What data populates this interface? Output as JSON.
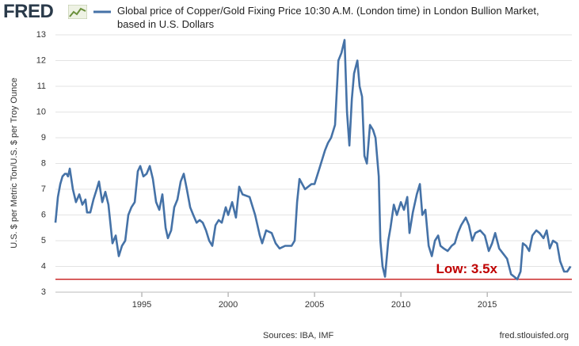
{
  "logo": "FRED",
  "chart_data": {
    "type": "line",
    "title": "Global price of Copper/Gold Fixing Price 10:30 A.M. (London time) in London Bullion Market, based in U.S. Dollars",
    "y_label": "U.S. $ per Metric Ton/U.S. $ per Troy Ounce",
    "source": "Sources: IBA, IMF",
    "credit": "fred.stlouisfed.org",
    "x": [
      1990.0,
      1990.14,
      1990.28,
      1990.41,
      1990.55,
      1990.64,
      1990.73,
      1990.83,
      1991.01,
      1991.19,
      1991.38,
      1991.56,
      1991.74,
      1991.83,
      1992.02,
      1992.2,
      1992.39,
      1992.52,
      1992.71,
      1992.89,
      1993.07,
      1993.3,
      1993.49,
      1993.67,
      1993.85,
      1994.04,
      1994.22,
      1994.4,
      1994.59,
      1994.77,
      1994.91,
      1995.09,
      1995.28,
      1995.46,
      1995.64,
      1995.83,
      1996.01,
      1996.19,
      1996.38,
      1996.51,
      1996.7,
      1996.88,
      1997.06,
      1997.25,
      1997.43,
      1997.61,
      1997.8,
      1997.98,
      1998.17,
      1998.35,
      1998.53,
      1998.72,
      1998.9,
      1999.08,
      1999.27,
      1999.45,
      1999.63,
      1999.86,
      2000.0,
      2000.23,
      2000.45,
      2000.64,
      2000.83,
      2001.24,
      2001.56,
      2001.83,
      2001.97,
      2002.2,
      2002.52,
      2002.75,
      2002.98,
      2003.3,
      2003.67,
      2003.85,
      2003.99,
      2004.13,
      2004.45,
      2004.82,
      2005.0,
      2005.28,
      2005.6,
      2005.78,
      2005.96,
      2006.19,
      2006.38,
      2006.56,
      2006.74,
      2006.88,
      2007.02,
      2007.16,
      2007.29,
      2007.48,
      2007.61,
      2007.75,
      2007.89,
      2008.03,
      2008.21,
      2008.39,
      2008.53,
      2008.72,
      2008.81,
      2008.94,
      2009.08,
      2009.27,
      2009.4,
      2009.59,
      2009.77,
      2010.0,
      2010.18,
      2010.37,
      2010.5,
      2010.69,
      2010.92,
      2011.1,
      2011.24,
      2011.42,
      2011.61,
      2011.79,
      2011.97,
      2012.16,
      2012.29,
      2012.48,
      2012.71,
      2012.94,
      2013.12,
      2013.3,
      2013.49,
      2013.76,
      2013.94,
      2014.13,
      2014.31,
      2014.59,
      2014.86,
      2015.09,
      2015.28,
      2015.46,
      2015.69,
      2015.92,
      2016.15,
      2016.38,
      2016.56,
      2016.74,
      2016.93,
      2017.06,
      2017.25,
      2017.43,
      2017.61,
      2017.84,
      2018.03,
      2018.26,
      2018.44,
      2018.62,
      2018.81,
      2019.04,
      2019.22,
      2019.45,
      2019.63,
      2019.82
    ],
    "series": [
      {
        "color": "#4572a7",
        "values": [
          5.7,
          6.7,
          7.2,
          7.5,
          7.6,
          7.6,
          7.5,
          7.8,
          7.0,
          6.5,
          6.8,
          6.4,
          6.6,
          6.1,
          6.1,
          6.6,
          7.0,
          7.3,
          6.5,
          6.9,
          6.4,
          4.9,
          5.2,
          4.4,
          4.8,
          5.0,
          6.0,
          6.3,
          6.5,
          7.7,
          7.9,
          7.5,
          7.6,
          7.9,
          7.4,
          6.5,
          6.2,
          6.8,
          5.5,
          5.1,
          5.4,
          6.3,
          6.6,
          7.3,
          7.6,
          7.0,
          6.3,
          6.0,
          5.7,
          5.8,
          5.7,
          5.4,
          5.0,
          4.8,
          5.6,
          5.8,
          5.7,
          6.3,
          6.0,
          6.5,
          5.9,
          7.1,
          6.8,
          6.7,
          6.0,
          5.2,
          4.9,
          5.4,
          5.3,
          4.9,
          4.7,
          4.8,
          4.8,
          5.0,
          6.5,
          7.4,
          7.0,
          7.2,
          7.2,
          7.8,
          8.5,
          8.8,
          9.0,
          9.5,
          12.0,
          12.3,
          12.8,
          10.0,
          8.7,
          10.5,
          11.5,
          12.0,
          11.0,
          10.6,
          8.3,
          8.0,
          9.5,
          9.3,
          9.0,
          7.5,
          5.0,
          4.0,
          3.6,
          5.0,
          5.5,
          6.4,
          6.0,
          6.5,
          6.2,
          6.7,
          5.3,
          6.1,
          6.8,
          7.2,
          6.0,
          6.2,
          4.8,
          4.4,
          5.0,
          5.2,
          4.8,
          4.7,
          4.6,
          4.8,
          4.9,
          5.3,
          5.6,
          5.9,
          5.6,
          5.0,
          5.3,
          5.4,
          5.2,
          4.6,
          4.9,
          5.3,
          4.7,
          4.5,
          4.3,
          3.7,
          3.6,
          3.5,
          3.8,
          4.9,
          4.8,
          4.6,
          5.2,
          5.4,
          5.3,
          5.1,
          5.4,
          4.7,
          5.0,
          4.9,
          4.2,
          3.8,
          3.8,
          4.0
        ]
      }
    ],
    "xlim": [
      1990,
      2019.9
    ],
    "xticks": [
      1995,
      2000,
      2005,
      2010,
      2015
    ],
    "ylim": [
      3,
      13
    ],
    "yticks": [
      3,
      4,
      5,
      6,
      7,
      8,
      9,
      10,
      11,
      12,
      13
    ],
    "grid": true,
    "reference_line": {
      "y": 3.5,
      "color": "#c00000",
      "label": "Low: 3.5x"
    }
  }
}
